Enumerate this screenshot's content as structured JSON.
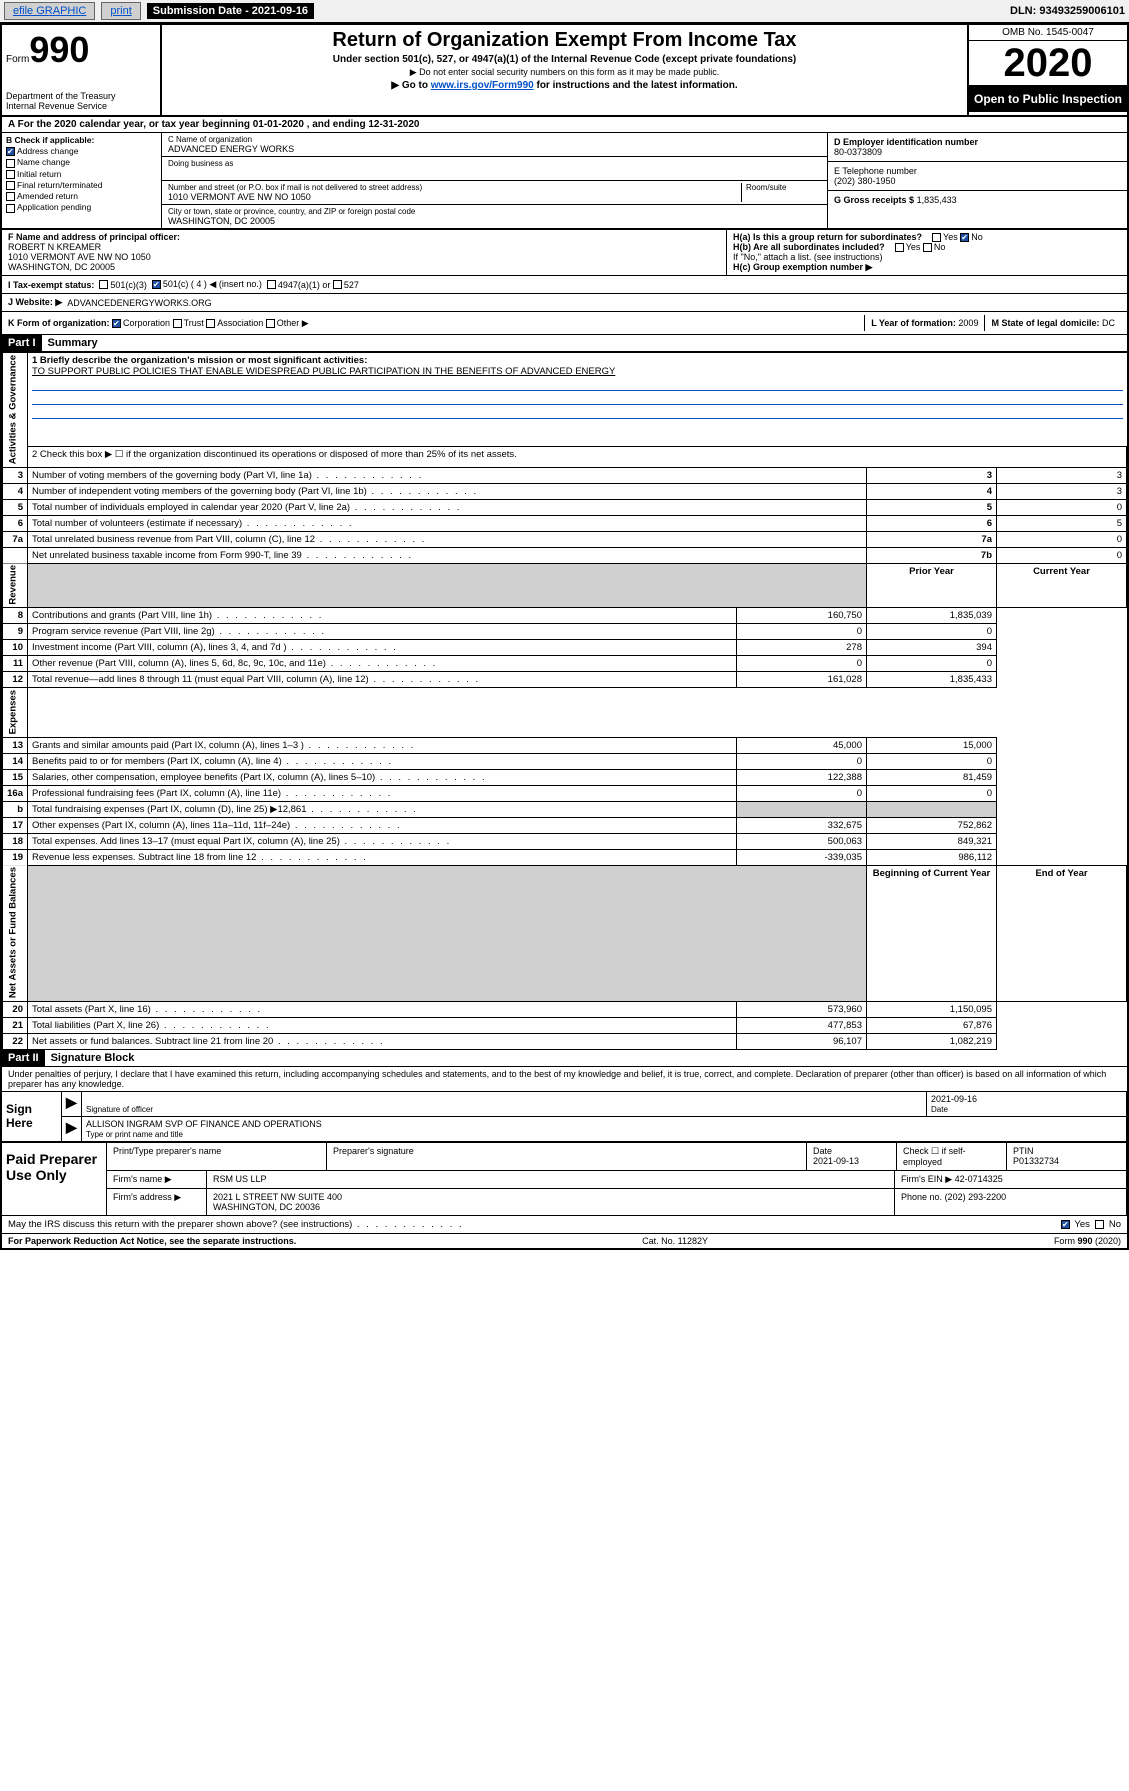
{
  "topbar": {
    "efile": "efile GRAPHIC",
    "print": "print",
    "sub_label": "Submission Date - 2021-09-16",
    "dln": "DLN: 93493259006101"
  },
  "header": {
    "form_word": "Form",
    "form_no": "990",
    "dept": "Department of the Treasury\nInternal Revenue Service",
    "title": "Return of Organization Exempt From Income Tax",
    "sub1": "Under section 501(c), 527, or 4947(a)(1) of the Internal Revenue Code (except private foundations)",
    "sub2": "▶ Do not enter social security numbers on this form as it may be made public.",
    "sub3a": "▶ Go to ",
    "sub3_link": "www.irs.gov/Form990",
    "sub3b": " for instructions and the latest information.",
    "omb": "OMB No. 1545-0047",
    "year": "2020",
    "open": "Open to Public Inspection"
  },
  "period": "For the 2020 calendar year, or tax year beginning 01-01-2020   , and ending 12-31-2020",
  "boxB": {
    "label": "B Check if applicable:",
    "addr": "Address change",
    "name": "Name change",
    "initial": "Initial return",
    "final": "Final return/terminated",
    "amended": "Amended return",
    "app": "Application pending"
  },
  "boxC": {
    "name_lbl": "C Name of organization",
    "name": "ADVANCED ENERGY WORKS",
    "dba_lbl": "Doing business as",
    "addr_lbl": "Number and street (or P.O. box if mail is not delivered to street address)",
    "room_lbl": "Room/suite",
    "addr": "1010 VERMONT AVE NW NO 1050",
    "city_lbl": "City or town, state or province, country, and ZIP or foreign postal code",
    "city": "WASHINGTON, DC  20005"
  },
  "boxD": {
    "lbl": "D Employer identification number",
    "val": "80-0373809"
  },
  "boxE": {
    "lbl": "E Telephone number",
    "val": "(202) 380-1950"
  },
  "boxG": {
    "lbl": "G Gross receipts $",
    "val": "1,835,433"
  },
  "boxF": {
    "lbl": "F  Name and address of principal officer:",
    "name": "ROBERT N KREAMER",
    "addr1": "1010 VERMONT AVE NW NO 1050",
    "addr2": "WASHINGTON, DC  20005"
  },
  "boxH": {
    "a": "H(a)  Is this a group return for subordinates?",
    "b": "H(b)  Are all subordinates included?",
    "b2": "If \"No,\" attach a list. (see instructions)",
    "c": "H(c)  Group exemption number ▶",
    "yes": "Yes",
    "no": "No"
  },
  "boxI": {
    "lbl": "I   Tax-exempt status:",
    "c3": "501(c)(3)",
    "c": "501(c) ( 4 ) ◀ (insert no.)",
    "a1": "4947(a)(1) or",
    "527": "527"
  },
  "boxJ": {
    "lbl": "J   Website: ▶",
    "val": "ADVANCEDENERGYWORKS.ORG"
  },
  "boxK": {
    "lbl": "K Form of organization:",
    "corp": "Corporation",
    "trust": "Trust",
    "assoc": "Association",
    "other": "Other ▶"
  },
  "boxL": {
    "lbl": "L Year of formation:",
    "val": "2009"
  },
  "boxM": {
    "lbl": "M State of legal domicile:",
    "val": "DC"
  },
  "part1": {
    "hdr": "Part I",
    "title": "Summary",
    "line1_lbl": "1  Briefly describe the organization's mission or most significant activities:",
    "line1_val": "TO SUPPORT PUBLIC POLICIES THAT ENABLE WIDESPREAD PUBLIC PARTICIPATION IN THE BENEFITS OF ADVANCED ENERGY",
    "line2": "2   Check this box ▶ ☐  if the organization discontinued its operations or disposed of more than 25% of its net assets.",
    "sideA": "Activities & Governance",
    "sideR": "Revenue",
    "sideE": "Expenses",
    "sideN": "Net Assets or Fund Balances",
    "prior_hdr": "Prior Year",
    "current_hdr": "Current Year",
    "begin_hdr": "Beginning of Current Year",
    "end_hdr": "End of Year",
    "rows_gov": [
      {
        "n": "3",
        "t": "Number of voting members of the governing body (Part VI, line 1a)",
        "box": "3",
        "v": "3"
      },
      {
        "n": "4",
        "t": "Number of independent voting members of the governing body (Part VI, line 1b)",
        "box": "4",
        "v": "3"
      },
      {
        "n": "5",
        "t": "Total number of individuals employed in calendar year 2020 (Part V, line 2a)",
        "box": "5",
        "v": "0"
      },
      {
        "n": "6",
        "t": "Total number of volunteers (estimate if necessary)",
        "box": "6",
        "v": "5"
      },
      {
        "n": "7a",
        "t": "Total unrelated business revenue from Part VIII, column (C), line 12",
        "box": "7a",
        "v": "0"
      },
      {
        "n": "",
        "t": "Net unrelated business taxable income from Form 990-T, line 39",
        "box": "7b",
        "v": "0"
      }
    ],
    "rows_rev": [
      {
        "n": "8",
        "t": "Contributions and grants (Part VIII, line 1h)",
        "p": "160,750",
        "c": "1,835,039"
      },
      {
        "n": "9",
        "t": "Program service revenue (Part VIII, line 2g)",
        "p": "0",
        "c": "0"
      },
      {
        "n": "10",
        "t": "Investment income (Part VIII, column (A), lines 3, 4, and 7d )",
        "p": "278",
        "c": "394"
      },
      {
        "n": "11",
        "t": "Other revenue (Part VIII, column (A), lines 5, 6d, 8c, 9c, 10c, and 11e)",
        "p": "0",
        "c": "0"
      },
      {
        "n": "12",
        "t": "Total revenue—add lines 8 through 11 (must equal Part VIII, column (A), line 12)",
        "p": "161,028",
        "c": "1,835,433"
      }
    ],
    "rows_exp": [
      {
        "n": "13",
        "t": "Grants and similar amounts paid (Part IX, column (A), lines 1–3 )",
        "p": "45,000",
        "c": "15,000"
      },
      {
        "n": "14",
        "t": "Benefits paid to or for members (Part IX, column (A), line 4)",
        "p": "0",
        "c": "0"
      },
      {
        "n": "15",
        "t": "Salaries, other compensation, employee benefits (Part IX, column (A), lines 5–10)",
        "p": "122,388",
        "c": "81,459"
      },
      {
        "n": "16a",
        "t": "Professional fundraising fees (Part IX, column (A), line 11e)",
        "p": "0",
        "c": "0"
      },
      {
        "n": "b",
        "t": "Total fundraising expenses (Part IX, column (D), line 25) ▶12,861",
        "p": "",
        "c": "",
        "shade": true
      },
      {
        "n": "17",
        "t": "Other expenses (Part IX, column (A), lines 11a–11d, 11f–24e)",
        "p": "332,675",
        "c": "752,862"
      },
      {
        "n": "18",
        "t": "Total expenses. Add lines 13–17 (must equal Part IX, column (A), line 25)",
        "p": "500,063",
        "c": "849,321"
      },
      {
        "n": "19",
        "t": "Revenue less expenses. Subtract line 18 from line 12",
        "p": "-339,035",
        "c": "986,112"
      }
    ],
    "rows_net": [
      {
        "n": "20",
        "t": "Total assets (Part X, line 16)",
        "p": "573,960",
        "c": "1,150,095"
      },
      {
        "n": "21",
        "t": "Total liabilities (Part X, line 26)",
        "p": "477,853",
        "c": "67,876"
      },
      {
        "n": "22",
        "t": "Net assets or fund balances. Subtract line 21 from line 20",
        "p": "96,107",
        "c": "1,082,219"
      }
    ]
  },
  "part2": {
    "hdr": "Part II",
    "title": "Signature Block",
    "perjury": "Under penalties of perjury, I declare that I have examined this return, including accompanying schedules and statements, and to the best of my knowledge and belief, it is true, correct, and complete. Declaration of preparer (other than officer) is based on all information of which preparer has any knowledge."
  },
  "sign": {
    "here": "Sign Here",
    "sig_lbl": "Signature of officer",
    "date": "2021-09-16",
    "date_lbl": "Date",
    "name": "ALLISON INGRAM  SVP OF FINANCE AND OPERATIONS",
    "name_lbl": "Type or print name and title"
  },
  "paid": {
    "lbl": "Paid Preparer Use Only",
    "h_name": "Print/Type preparer's name",
    "h_sig": "Preparer's signature",
    "h_date": "Date",
    "date": "2021-09-13",
    "h_check": "Check ☐ if self-employed",
    "h_ptin": "PTIN",
    "ptin": "P01332734",
    "firm_lbl": "Firm's name    ▶",
    "firm": "RSM US LLP",
    "ein_lbl": "Firm's EIN ▶",
    "ein": "42-0714325",
    "addr_lbl": "Firm's address ▶",
    "addr1": "2021 L STREET NW SUITE 400",
    "addr2": "WASHINGTON, DC  20036",
    "phone_lbl": "Phone no.",
    "phone": "(202) 293-2200"
  },
  "discuss": {
    "q": "May the IRS discuss this return with the preparer shown above? (see instructions)",
    "yes": "Yes",
    "no": "No"
  },
  "footer": {
    "pra": "For Paperwork Reduction Act Notice, see the separate instructions.",
    "cat": "Cat. No. 11282Y",
    "form": "Form 990 (2020)"
  }
}
